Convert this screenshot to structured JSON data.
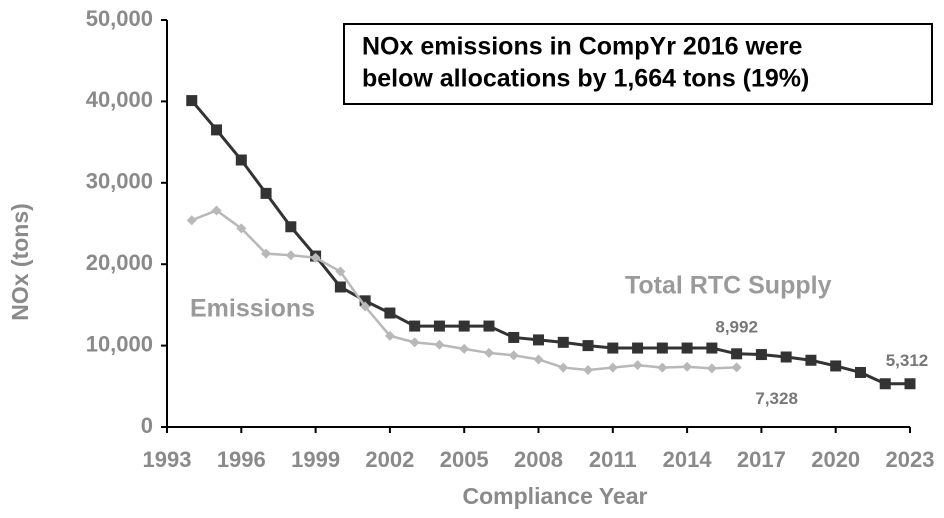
{
  "chart_data": {
    "type": "line",
    "annotation": [
      "NOx emissions in CompYr 2016 were",
      "below allocations by 1,664 tons (19%)"
    ],
    "xlabel": "Compliance Year",
    "ylabel": "NOx (tons)",
    "x": [
      1994,
      1995,
      1996,
      1997,
      1998,
      1999,
      2000,
      2001,
      2002,
      2003,
      2004,
      2005,
      2006,
      2007,
      2008,
      2009,
      2010,
      2011,
      2012,
      2013,
      2014,
      2015,
      2016,
      2017,
      2018,
      2019,
      2020,
      2021,
      2022,
      2023
    ],
    "series": [
      {
        "name": "Total RTC Supply",
        "color": "#333333",
        "marker": "square",
        "values": [
          40100,
          36500,
          32800,
          28700,
          24600,
          21000,
          17200,
          15500,
          14000,
          12400,
          12400,
          12400,
          12400,
          11000,
          10700,
          10400,
          10000,
          9700,
          9700,
          9700,
          9700,
          9700,
          8992,
          8900,
          8600,
          8200,
          7500,
          6700,
          5312,
          5312
        ],
        "value_labels": [
          null,
          null,
          null,
          null,
          null,
          null,
          null,
          null,
          null,
          null,
          null,
          null,
          null,
          null,
          null,
          null,
          null,
          null,
          null,
          null,
          null,
          null,
          "8,992",
          null,
          null,
          null,
          null,
          null,
          null,
          "5,312"
        ]
      },
      {
        "name": "Emissions",
        "color": "#b8b8b8",
        "marker": "diamond",
        "values": [
          25400,
          26600,
          24400,
          21300,
          21100,
          20800,
          19100,
          14800,
          11200,
          10400,
          10100,
          9600,
          9100,
          8800,
          8300,
          7300,
          7000,
          7300,
          7600,
          7300,
          7400,
          7200,
          7328,
          null,
          null,
          null,
          null,
          null,
          null,
          null
        ],
        "value_labels": [
          null,
          null,
          null,
          null,
          null,
          null,
          null,
          null,
          null,
          null,
          null,
          null,
          null,
          null,
          null,
          null,
          null,
          null,
          null,
          null,
          null,
          null,
          "7,328",
          null,
          null,
          null,
          null,
          null,
          null,
          null
        ]
      }
    ],
    "xlim": [
      1993,
      2023
    ],
    "xticks": [
      1993,
      1996,
      1999,
      2002,
      2005,
      2008,
      2011,
      2014,
      2017,
      2020,
      2023
    ],
    "ylim": [
      0,
      50000
    ],
    "yticks": [
      0,
      {
        "value": 10000,
        "label": "10,000"
      },
      {
        "value": 20000,
        "label": "20,000"
      },
      {
        "value": 30000,
        "label": "30,000"
      },
      {
        "value": 40000,
        "label": "40,000"
      },
      {
        "value": 50000,
        "label": "50,000"
      }
    ],
    "grid": false
  }
}
